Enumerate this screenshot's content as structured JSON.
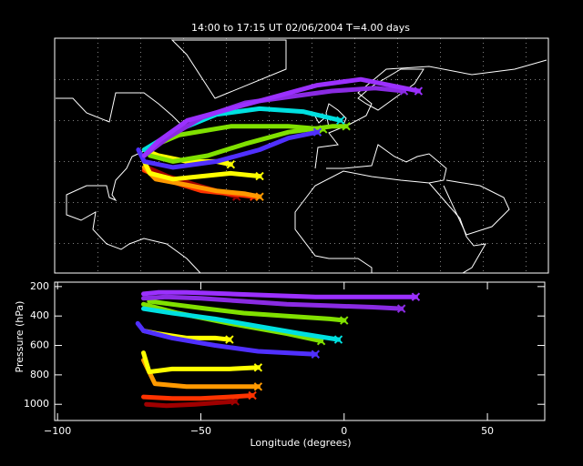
{
  "chart_data": {
    "type": "trajectory",
    "title": "14:00 to 17:15 UT 02/06/2004    T=4.00 days",
    "xlabel": "Longitude  (degrees)",
    "ylabel": "Pressure  (hPa)",
    "xlim": [
      -101,
      70
    ],
    "xticks": [
      {
        "value": -100,
        "label": "−100"
      },
      {
        "value": -50,
        "label": "−50"
      },
      0,
      50
    ],
    "ylim": [
      1110,
      170
    ],
    "yticks": [
      200,
      400,
      600,
      800,
      1000
    ],
    "latlim": [
      0,
      80
    ],
    "grid": true,
    "series": [
      {
        "color": "#a00000",
        "x": [
          -69,
          -62,
          -52,
          -45,
          -38
        ],
        "lat": [
          36,
          33,
          30,
          28,
          26
        ],
        "y": [
          1000,
          1010,
          1000,
          990,
          980
        ]
      },
      {
        "color": "#ff3300",
        "x": [
          -70,
          -60,
          -50,
          -40,
          -32
        ],
        "lat": [
          35,
          31,
          28,
          27,
          26
        ],
        "y": [
          950,
          960,
          960,
          950,
          940
        ]
      },
      {
        "color": "#ff9900",
        "x": [
          -70,
          -66,
          -55,
          -45,
          -35,
          -30
        ],
        "lat": [
          36,
          32,
          30,
          28,
          27,
          26
        ],
        "y": [
          700,
          860,
          880,
          880,
          880,
          880
        ]
      },
      {
        "color": "#ffff00",
        "x": [
          -70,
          -68,
          -60,
          -50,
          -40,
          -30
        ],
        "lat": [
          38,
          34,
          32,
          33,
          34,
          33
        ],
        "y": [
          650,
          780,
          760,
          760,
          760,
          750
        ]
      },
      {
        "color": "#ffff00",
        "x": [
          -70,
          -65,
          -55,
          -45,
          -40
        ],
        "lat": [
          42,
          40,
          38,
          38,
          37
        ],
        "y": [
          500,
          520,
          550,
          550,
          560
        ]
      },
      {
        "color": "#80e000",
        "x": [
          -68,
          -60,
          -48,
          -35,
          -20,
          -5,
          0
        ],
        "lat": [
          40,
          38,
          40,
          44,
          48,
          50,
          50
        ],
        "y": [
          300,
          320,
          350,
          380,
          400,
          420,
          430
        ]
      },
      {
        "color": "#80e000",
        "x": [
          -70,
          -58,
          -40,
          -20,
          -8
        ],
        "lat": [
          42,
          47,
          50,
          50,
          49
        ],
        "y": [
          320,
          380,
          450,
          520,
          570
        ]
      },
      {
        "color": "#00e0e0",
        "x": [
          -70,
          -60,
          -45,
          -30,
          -15,
          -2
        ],
        "lat": [
          42,
          48,
          54,
          56,
          55,
          52
        ],
        "y": [
          350,
          380,
          420,
          470,
          520,
          560
        ]
      },
      {
        "color": "#5030ff",
        "x": [
          -72,
          -70,
          -60,
          -45,
          -30,
          -20,
          -10
        ],
        "lat": [
          42,
          38,
          36,
          38,
          42,
          46,
          48
        ],
        "y": [
          450,
          500,
          550,
          600,
          640,
          650,
          660
        ]
      },
      {
        "color": "#8a2be2",
        "x": [
          -70,
          -62,
          -50,
          -35,
          -20,
          -5,
          10,
          20
        ],
        "lat": [
          40,
          46,
          53,
          58,
          60,
          62,
          63,
          62
        ],
        "y": [
          280,
          270,
          280,
          300,
          320,
          330,
          340,
          350
        ]
      },
      {
        "color": "#9b30ff",
        "x": [
          -70,
          -65,
          -55,
          -40,
          -25,
          -10,
          5,
          15,
          25
        ],
        "lat": [
          40,
          45,
          52,
          56,
          60,
          64,
          66,
          64,
          62
        ],
        "y": [
          250,
          240,
          240,
          250,
          260,
          270,
          270,
          270,
          270
        ]
      }
    ]
  }
}
